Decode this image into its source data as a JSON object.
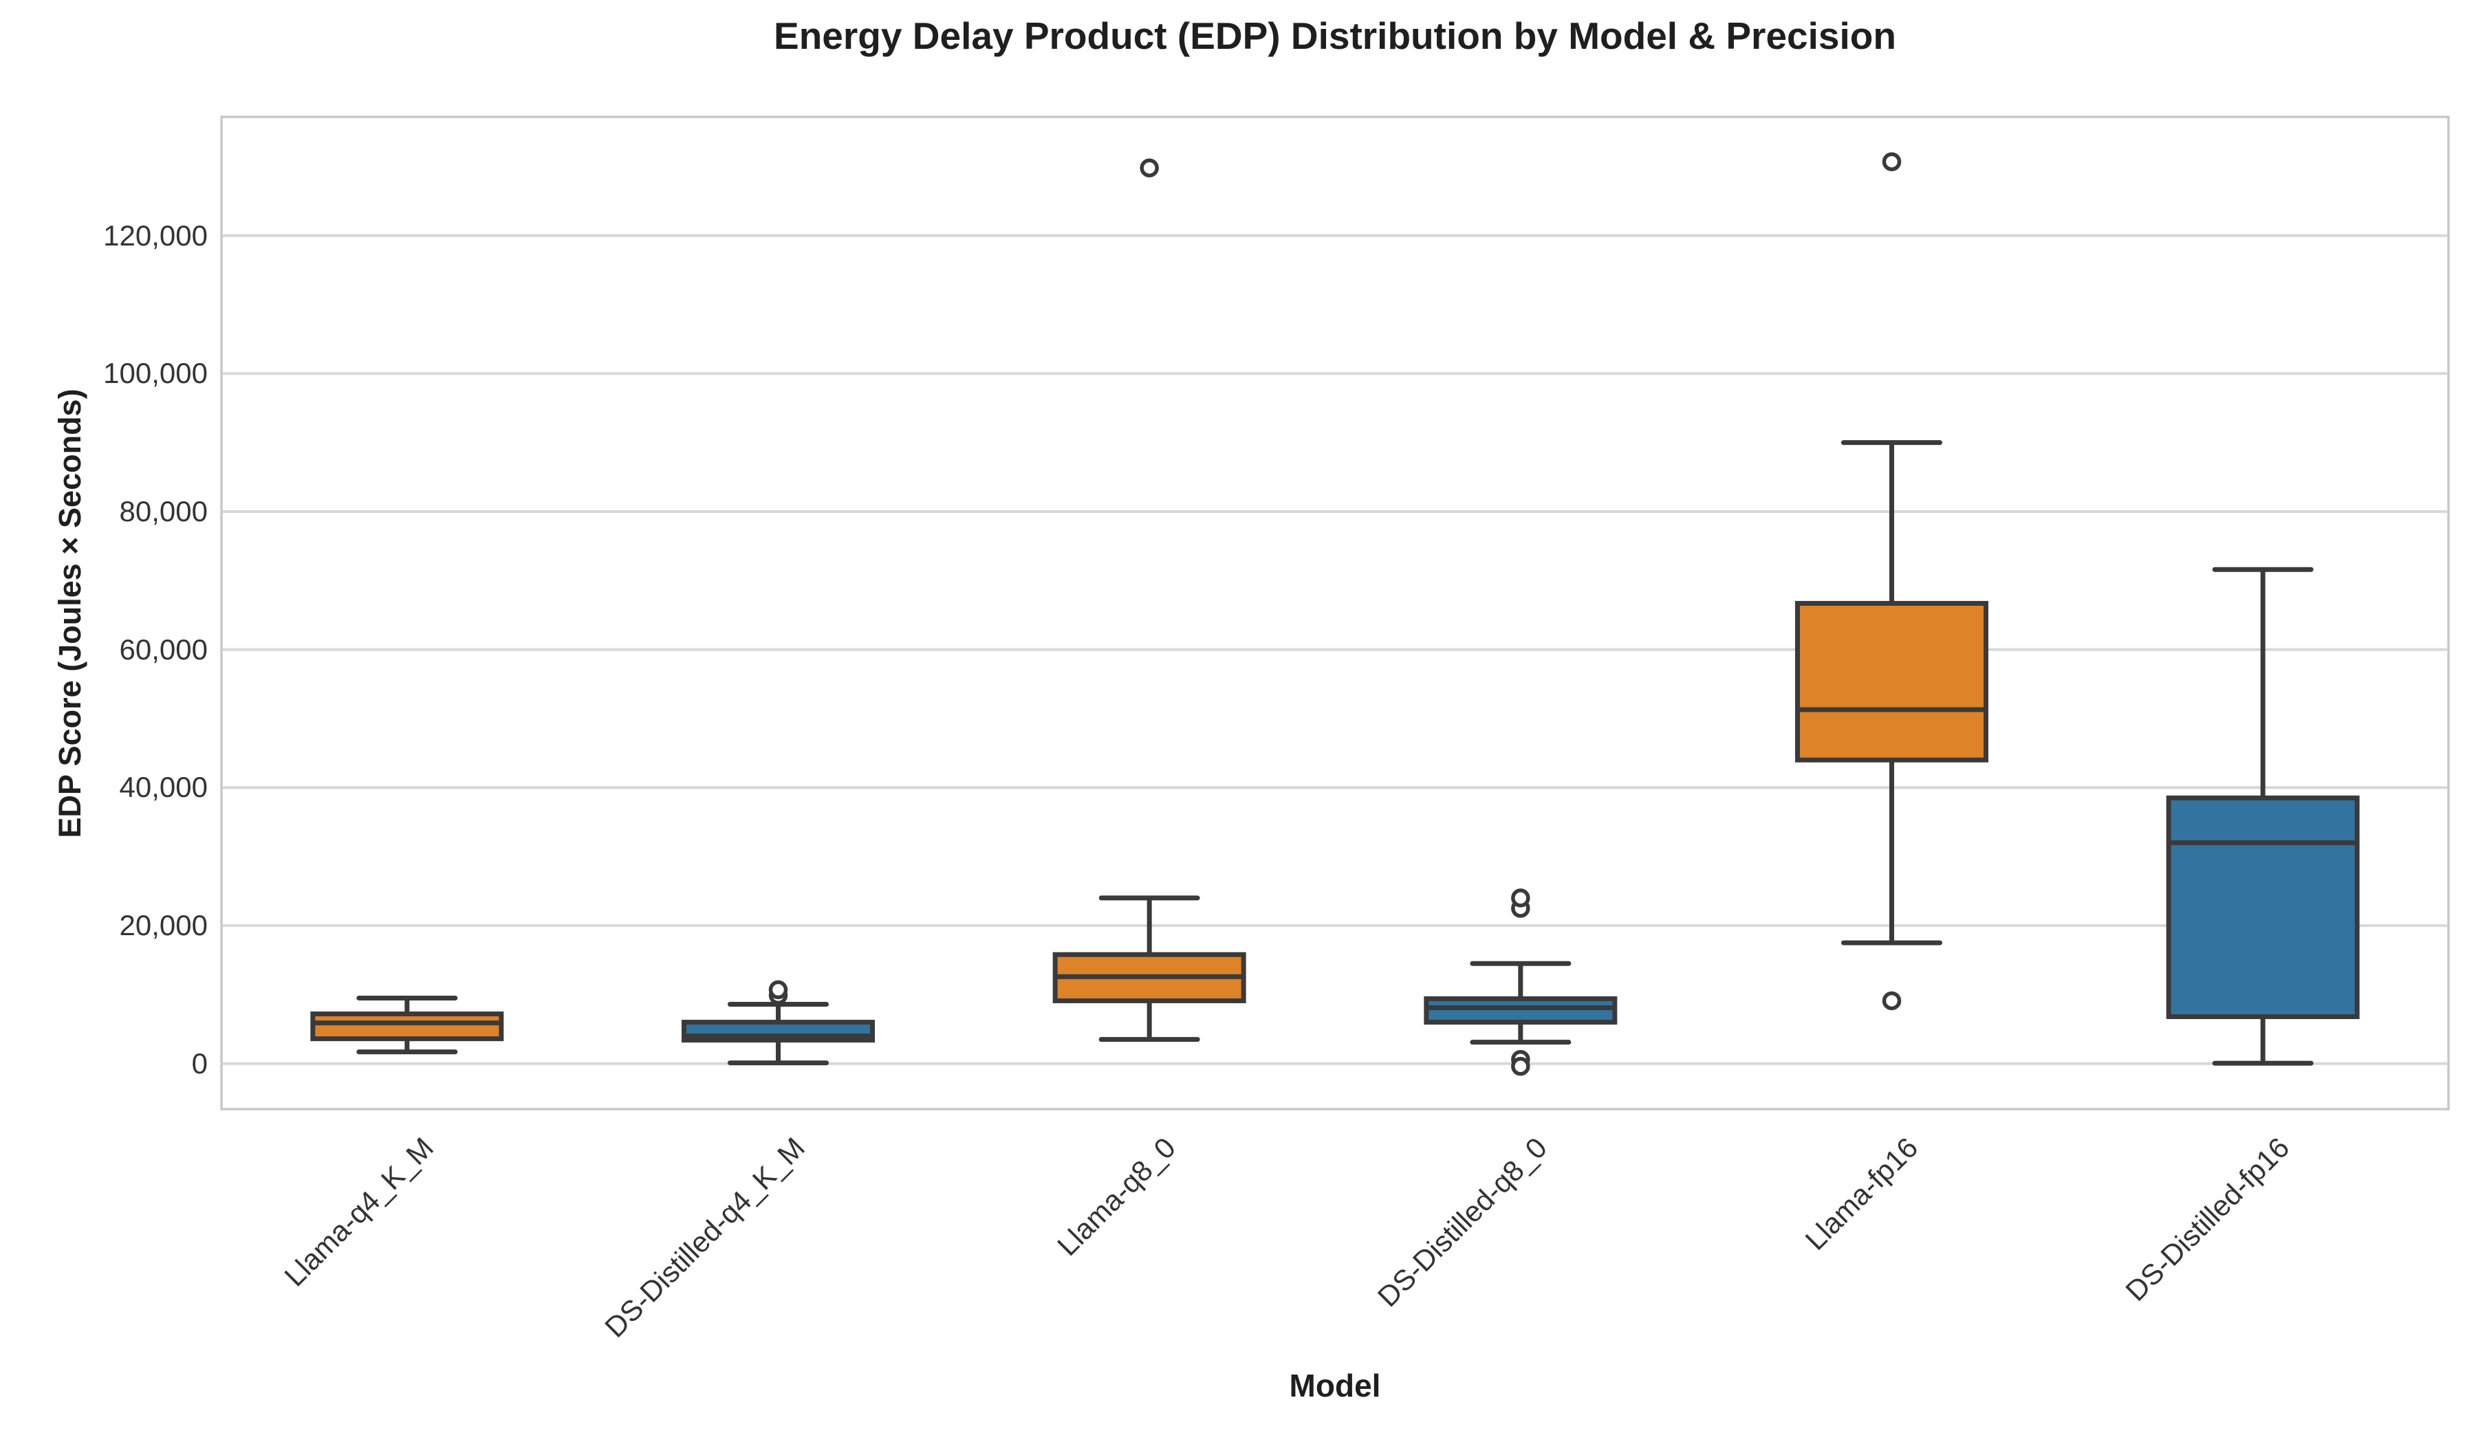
{
  "chart_data": {
    "type": "box",
    "title": "Energy Delay Product (EDP) Distribution by Model & Precision",
    "xlabel": "Model",
    "ylabel": "EDP Score (Joules × Seconds)",
    "grid": "horizontal-only",
    "legend": "none",
    "ylim": [
      -6600,
      137200
    ],
    "y_ticks": [
      0,
      20000,
      40000,
      60000,
      80000,
      100000,
      120000
    ],
    "y_tick_labels": [
      "0",
      "20,000",
      "40,000",
      "60,000",
      "80,000",
      "100,000",
      "120,000"
    ],
    "categories": [
      "Llama-q4_K_M",
      "DS-Distilled-q4_K_M",
      "Llama-q8_0",
      "DS-Distilled-q8_0",
      "Llama-fp16",
      "DS-Distilled-fp16"
    ],
    "boxes": [
      {
        "model": "Llama-q4_K_M",
        "color": "orange",
        "whisker_low": 1700,
        "q1": 3600,
        "median": 5900,
        "q3": 7200,
        "whisker_high": 9500,
        "outliers": []
      },
      {
        "model": "DS-Distilled-q4_K_M",
        "color": "blue",
        "whisker_low": 100,
        "q1": 3400,
        "median": 4000,
        "q3": 6000,
        "whisker_high": 8600,
        "outliers": [
          9900,
          10700
        ]
      },
      {
        "model": "Llama-q8_0",
        "color": "orange",
        "whisker_low": 3500,
        "q1": 9100,
        "median": 12600,
        "q3": 15800,
        "whisker_high": 24000,
        "outliers": [
          129800
        ]
      },
      {
        "model": "DS-Distilled-q8_0",
        "color": "blue",
        "whisker_low": 3100,
        "q1": 6000,
        "median": 8100,
        "q3": 9400,
        "whisker_high": 14500,
        "outliers": [
          22500,
          24000,
          600,
          -400
        ]
      },
      {
        "model": "Llama-fp16",
        "color": "orange",
        "whisker_low": 17500,
        "q1": 44000,
        "median": 51300,
        "q3": 66700,
        "whisker_high": 90000,
        "outliers": [
          130700,
          9100
        ]
      },
      {
        "model": "DS-Distilled-fp16",
        "color": "blue",
        "whisker_low": 50,
        "q1": 6800,
        "median": 32000,
        "q3": 38500,
        "whisker_high": 71600,
        "outliers": []
      }
    ],
    "palette": {
      "orange": "#DE8327",
      "blue": "#32749F",
      "line": "#3A3A3A",
      "grid": "#D8D8D8",
      "spine": "#C8C8C8",
      "text": "#1F1F1F",
      "tick_text": "#333333",
      "background": "#FFFFFF"
    }
  }
}
